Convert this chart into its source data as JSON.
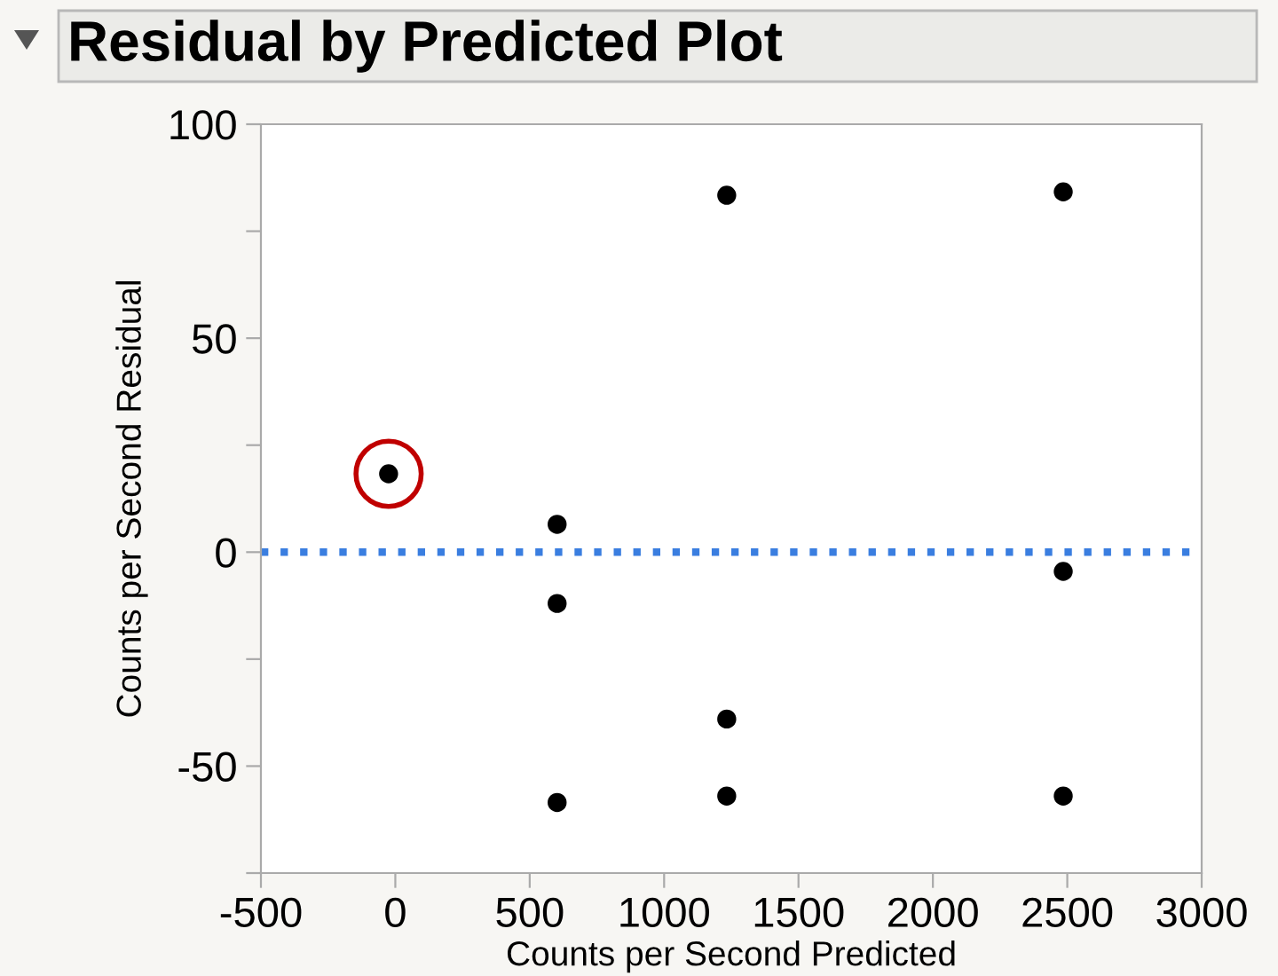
{
  "chart_data": {
    "type": "scatter",
    "title": "Residual by Predicted Plot",
    "xlabel": "Counts per Second Predicted",
    "ylabel": "Counts per Second Residual",
    "series": [
      {
        "color": "#000000",
        "x": [
          602,
          602,
          602,
          1233,
          1233,
          1233,
          2485,
          2485,
          2485
        ],
        "values": [
          6.5,
          -12,
          -58.5,
          83.4,
          -39,
          -57,
          84.2,
          -4.5,
          -57
        ]
      },
      {
        "color": "#c00000",
        "x": [
          -25
        ],
        "values": [
          18.3
        ]
      }
    ],
    "marker": "circle",
    "xlim": [
      -500,
      3000
    ],
    "xticks": [
      -500,
      0,
      500,
      1000,
      1500,
      2000,
      2500,
      3000
    ],
    "ylim": [
      -75,
      100
    ],
    "yticks": [
      {
        "value": -75,
        "label": null
      },
      -50,
      {
        "value": -25,
        "label": null
      },
      0,
      {
        "value": 25,
        "label": null
      },
      50,
      {
        "value": 75,
        "label": null
      },
      100
    ],
    "ref_lines": [
      {
        "axis": "y",
        "value": 0,
        "color": "#3a7ee0",
        "line_style": "dotted"
      }
    ],
    "grid": false,
    "legend": false
  }
}
